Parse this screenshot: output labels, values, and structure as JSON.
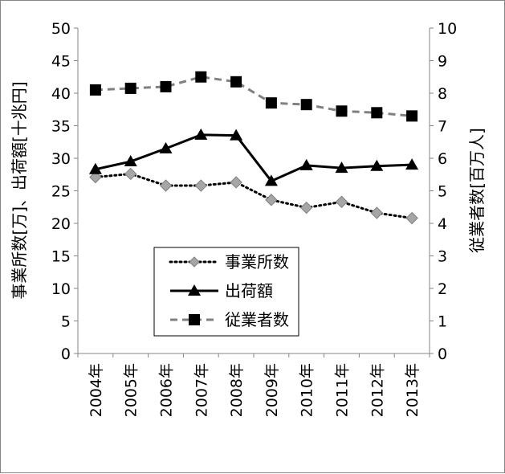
{
  "chart_data": {
    "type": "line",
    "categories": [
      "2004年",
      "2005年",
      "2006年",
      "2007年",
      "2008年",
      "2009年",
      "2010年",
      "2011年",
      "2012年",
      "2013年"
    ],
    "left_axis": {
      "label": "事業所数[万]、出荷額[十兆円]",
      "range": [
        0,
        50
      ],
      "ticks": [
        "0",
        "5",
        "10",
        "15",
        "20",
        "25",
        "30",
        "35",
        "40",
        "45",
        "50"
      ]
    },
    "right_axis": {
      "label": "従業者数[百万人]",
      "range": [
        0,
        10
      ],
      "ticks": [
        "0",
        "1",
        "2",
        "3",
        "4",
        "5",
        "6",
        "7",
        "8",
        "9",
        "10"
      ]
    },
    "series": [
      {
        "name": "事業所数",
        "axis": "left",
        "values": [
          27.1,
          27.6,
          25.8,
          25.8,
          26.3,
          23.6,
          22.4,
          23.3,
          21.6,
          20.8
        ],
        "color": "#000000",
        "marker_color": "#a6a6a6",
        "line_style": "dotted",
        "marker": "diamond"
      },
      {
        "name": "出荷額",
        "axis": "left",
        "values": [
          28.3,
          29.5,
          31.5,
          33.6,
          33.5,
          26.5,
          28.9,
          28.5,
          28.8,
          29.0
        ],
        "color": "#000000",
        "line_style": "solid",
        "marker": "triangle"
      },
      {
        "name": "従業者数",
        "axis": "right",
        "values": [
          8.1,
          8.15,
          8.2,
          8.5,
          8.35,
          7.7,
          7.65,
          7.45,
          7.4,
          7.3
        ],
        "color": "#808080",
        "marker_color": "#000000",
        "line_style": "dashed",
        "marker": "square"
      }
    ],
    "legend_position": "bottom-center-inside",
    "grid": false
  }
}
